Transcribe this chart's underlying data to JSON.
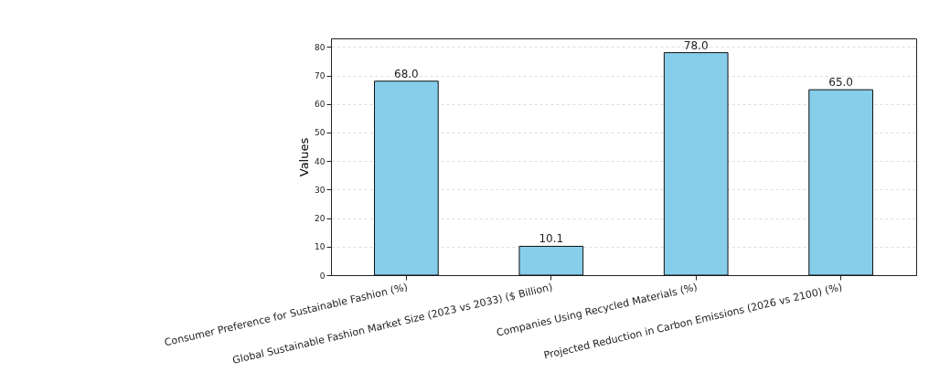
{
  "chart_data": {
    "type": "bar",
    "ylabel": "Values",
    "categories": [
      "Consumer Preference for Sustainable Fashion (%)",
      "Global Sustainable Fashion Market Size (2023 vs 2033) ($ Billion)",
      "Companies Using Recycled Materials (%)",
      "Projected Reduction in Carbon Emissions (2026 vs 2100) (%)"
    ],
    "values": [
      68.0,
      10.1,
      78.0,
      65.0
    ],
    "value_labels": [
      "68.0",
      "10.1",
      "78.0",
      "65.0"
    ],
    "color": "#87ceeb",
    "ylim": [
      0,
      83
    ],
    "yticks": [
      0,
      10,
      20,
      30,
      40,
      50,
      60,
      70,
      80
    ],
    "grid": "y"
  }
}
